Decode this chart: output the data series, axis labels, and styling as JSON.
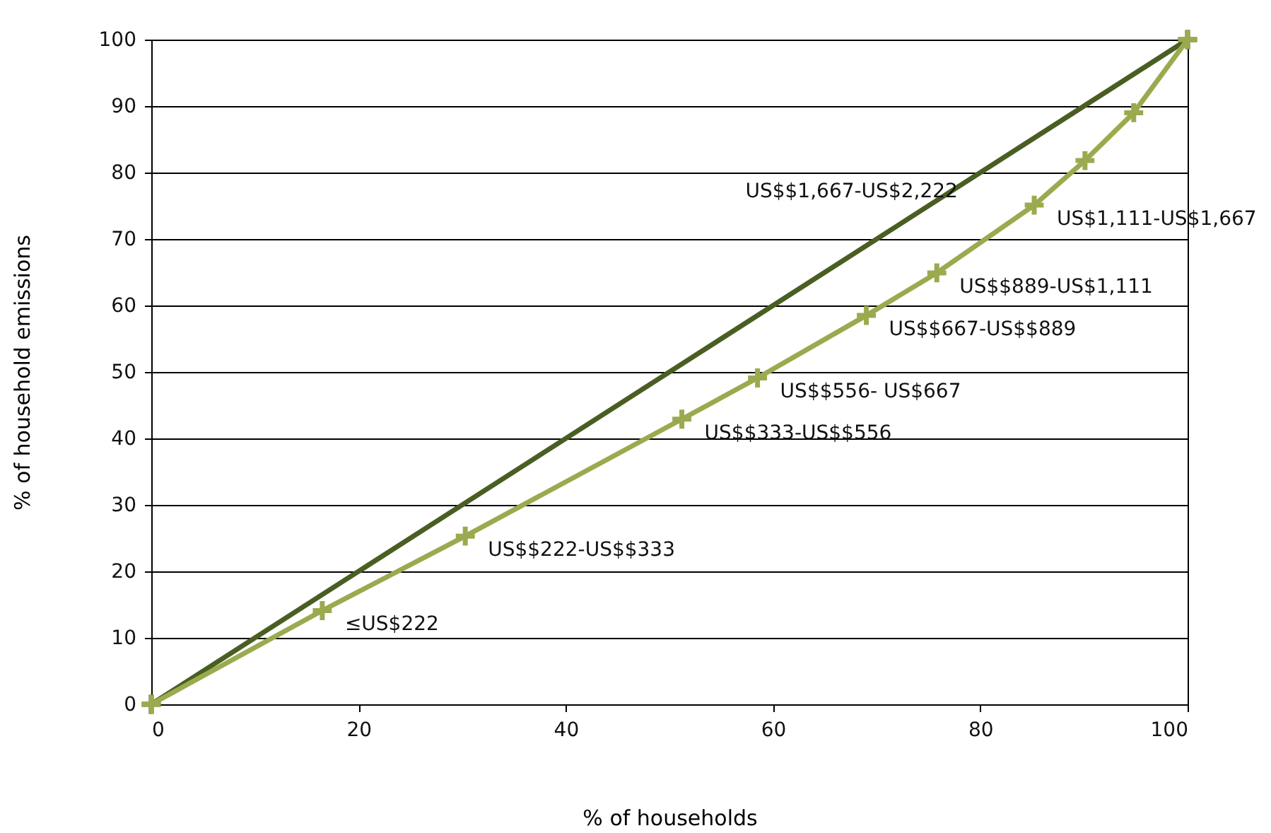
{
  "chart_data": {
    "type": "line",
    "xlabel": "% of households",
    "ylabel": "%  of household emissions",
    "xlim": [
      0,
      100
    ],
    "ylim": [
      0,
      100
    ],
    "xticks": [
      0,
      20,
      40,
      60,
      80,
      100
    ],
    "yticks": [
      0,
      10,
      20,
      30,
      40,
      50,
      60,
      70,
      80,
      90,
      100
    ],
    "grid": "y",
    "marker": "cross",
    "series": [
      {
        "color": "#4a5e23",
        "x": [
          0,
          100
        ],
        "values": [
          0,
          100
        ]
      },
      {
        "color": "#9aaa4e",
        "x": [
          0,
          16.5,
          30.3,
          51.2,
          58.5,
          69.0,
          75.8,
          85.2,
          90.1,
          94.8,
          100
        ],
        "values": [
          0,
          14.1,
          25.3,
          42.9,
          49.1,
          58.5,
          64.9,
          75.1,
          81.8,
          89.0,
          100
        ]
      }
    ],
    "annotations": [
      "≤US$222",
      "US$$222-US$$333",
      "US$$333-US$$556",
      "US$$556- US$667",
      "US$$667-US$$889",
      "US$$889-US$1,111",
      "US$1,111-US$1,667",
      "US$$1,667-US$2,222"
    ]
  }
}
